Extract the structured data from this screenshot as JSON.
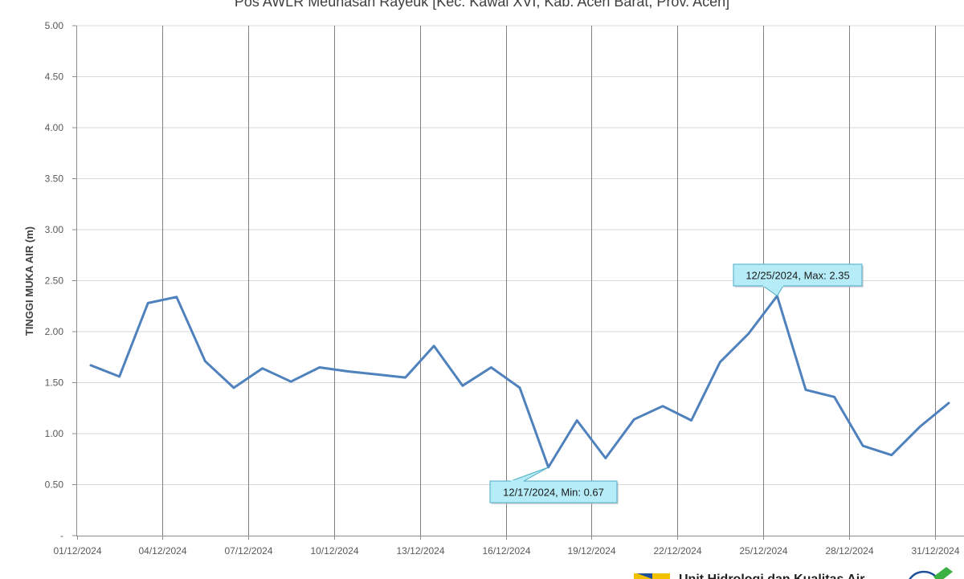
{
  "chart_data": {
    "type": "line",
    "title": "Pos AWLR Meunasah Rayeuk [Kec. Kawai XVI, Kab. Aceh Barat, Prov. Aceh]",
    "ylabel": "TINGGI MUKA AIR (m)",
    "xlabel": "",
    "ylim": [
      0,
      5
    ],
    "y_ticks": [
      "-",
      "0.50",
      "1.00",
      "1.50",
      "2.00",
      "2.50",
      "3.00",
      "3.50",
      "4.00",
      "4.50",
      "5.00"
    ],
    "x_range": [
      "2024-12-01",
      "2024-12-31"
    ],
    "x_ticks": [
      "01/12/2024",
      "04/12/2024",
      "07/12/2024",
      "10/12/2024",
      "13/12/2024",
      "16/12/2024",
      "19/12/2024",
      "22/12/2024",
      "25/12/2024",
      "28/12/2024",
      "31/12/2024"
    ],
    "grid": true,
    "line_color": "#4f81bd",
    "series": [
      {
        "x": [
          "2024-12-01",
          "2024-12-02",
          "2024-12-03",
          "2024-12-04",
          "2024-12-05",
          "2024-12-06",
          "2024-12-07",
          "2024-12-08",
          "2024-12-09",
          "2024-12-10",
          "2024-12-11",
          "2024-12-12",
          "2024-12-13",
          "2024-12-14",
          "2024-12-15",
          "2024-12-16",
          "2024-12-17",
          "2024-12-18",
          "2024-12-19",
          "2024-12-20",
          "2024-12-21",
          "2024-12-22",
          "2024-12-23",
          "2024-12-24",
          "2024-12-25",
          "2024-12-26",
          "2024-12-27",
          "2024-12-28",
          "2024-12-29",
          "2024-12-30",
          "2024-12-31"
        ],
        "values": [
          1.67,
          1.56,
          2.28,
          2.34,
          1.71,
          1.45,
          1.64,
          1.51,
          1.65,
          1.61,
          1.58,
          1.55,
          1.86,
          1.47,
          1.65,
          1.45,
          0.67,
          1.13,
          0.76,
          1.14,
          1.27,
          1.13,
          1.7,
          1.98,
          2.35,
          1.43,
          1.36,
          0.88,
          0.79,
          1.07,
          1.3
        ]
      }
    ],
    "annotations": [
      {
        "x": "2024-12-17",
        "y": 0.67,
        "text": "12/17/2024, Min: 0.67"
      },
      {
        "x": "2024-12-25",
        "y": 2.35,
        "text": "12/25/2024, Max: 2.35"
      }
    ]
  },
  "footer": {
    "org_text": "Unit Hidrologi dan Kualitas Air"
  },
  "colors": {
    "callout_fill": "#b6ecf7",
    "callout_border": "#4bacc6",
    "logo_yellow": "#f2c200",
    "logo_blue": "#1f4e9a",
    "logo_green": "#3cb043"
  }
}
